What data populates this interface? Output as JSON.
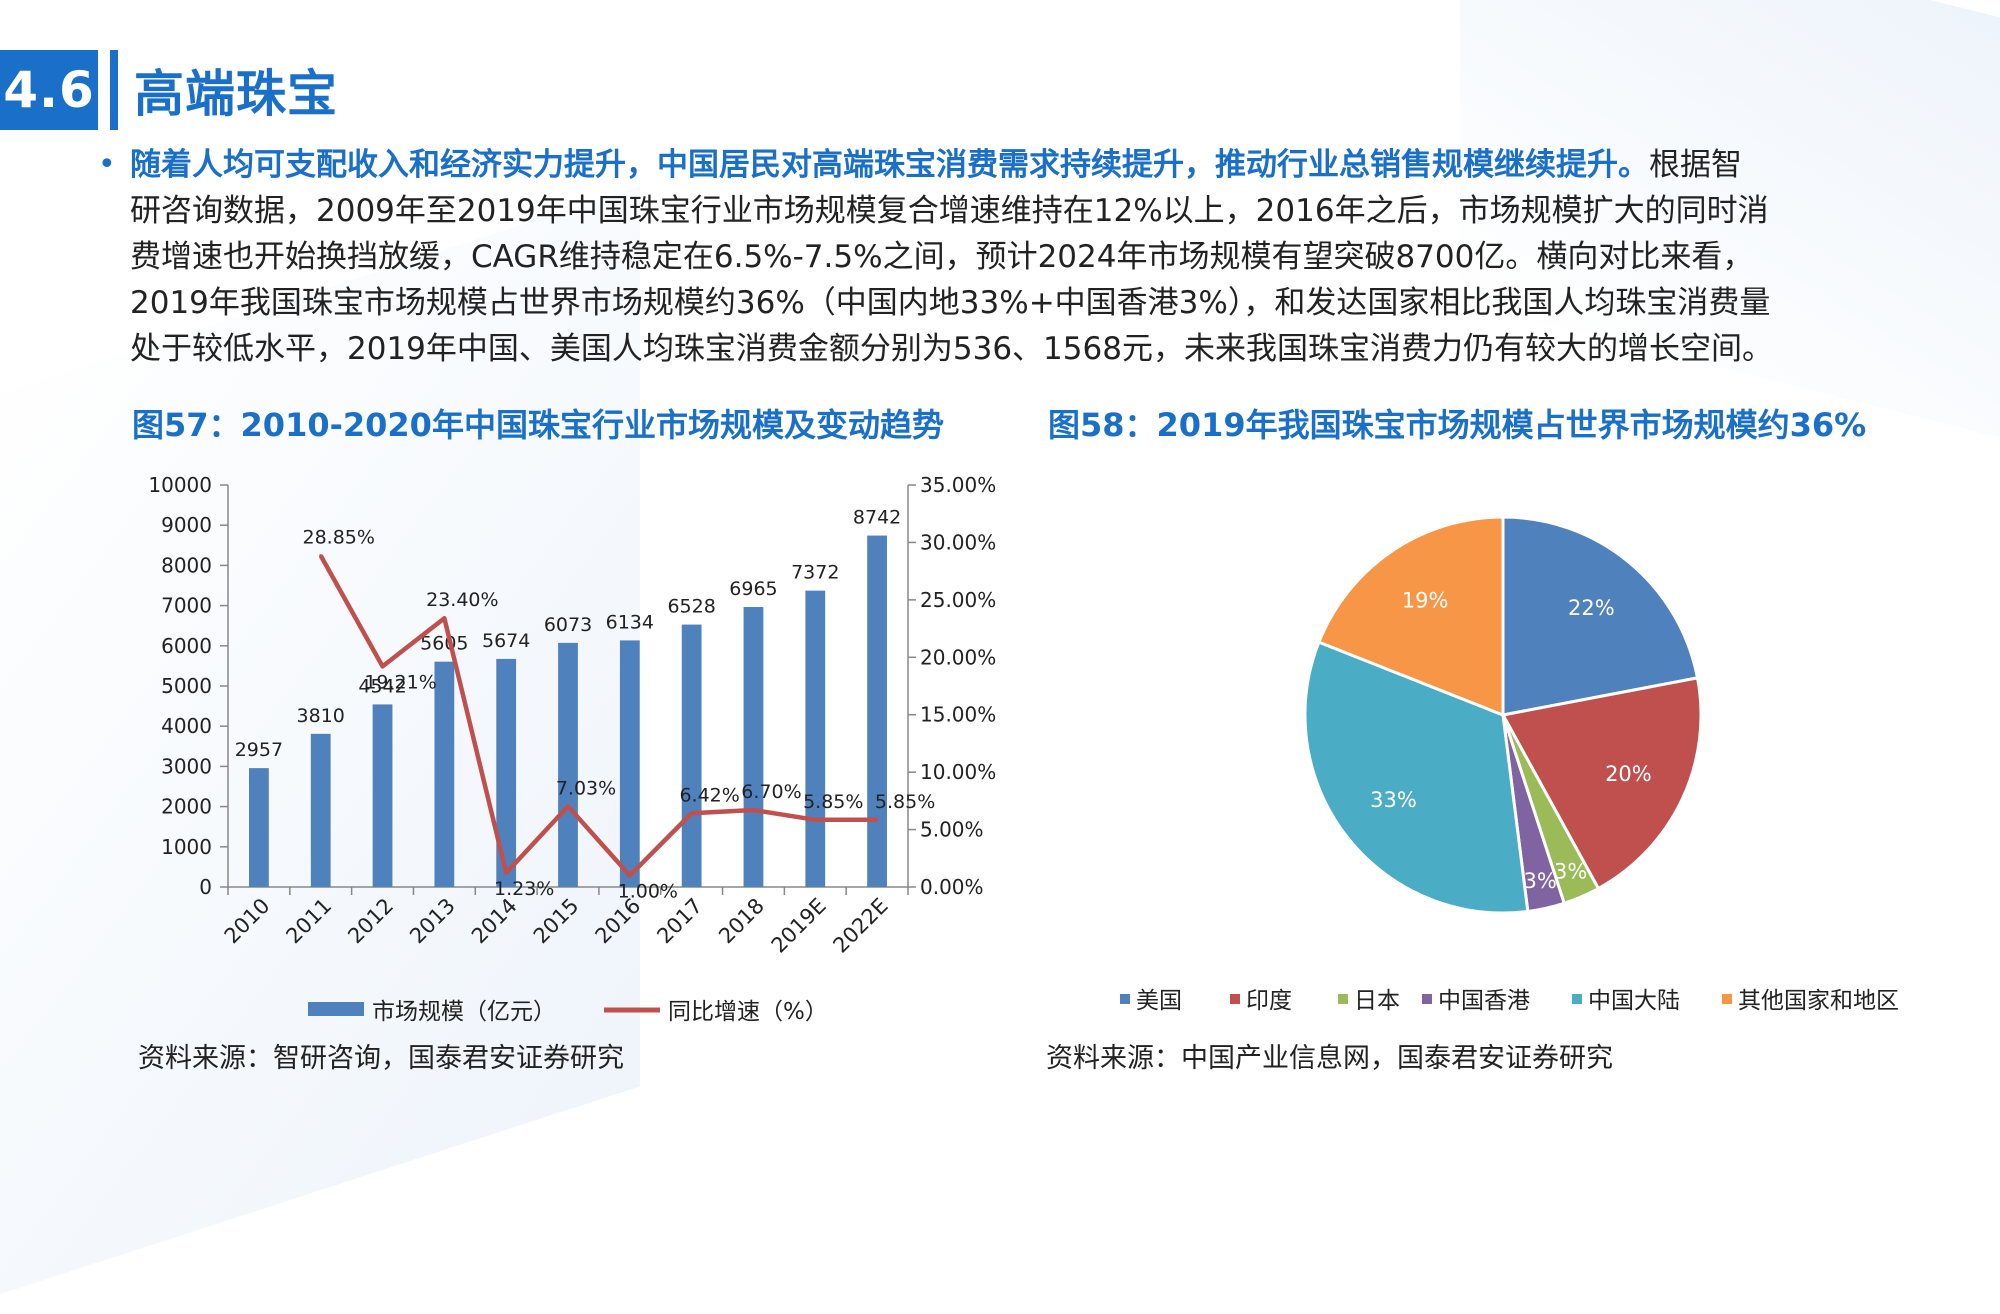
{
  "header": {
    "section_number": "4.6",
    "title": "高端珠宝"
  },
  "bullet": {
    "lead": "随着人均可支配收入和经济实力提升，中国居民对高端珠宝消费需求持续提升，推动行业总销售规模继续提升。",
    "lines": [
      "根据智",
      "研咨询数据，2009年至2019年中国珠宝行业市场规模复合增速维持在12%以上，2016年之后，市场规模扩大的同时消",
      "费增速也开始换挡放缓，CAGR维持稳定在6.5%-7.5%之间，预计2024年市场规模有望突破8700亿。横向对比来看，",
      "2019年我国珠宝市场规模占世界市场规模约36%（中国内地33%+中国香港3%），和发达国家相比我国人均珠宝消费量",
      "处于较低水平，2019年中国、美国人均珠宝消费金额分别为536、1568元，未来我国珠宝消费力仍有较大的增长空间。"
    ]
  },
  "figures": {
    "fig57_title": "图57：2010-2020年中国珠宝行业市场规模及变动趋势",
    "fig58_title": "图58：2019年我国珠宝市场规模占世界市场规模约36%",
    "fig57_source": "资料来源：智研咨询，国泰君安证券研究",
    "fig58_source": "资料来源：中国产业信息网，国泰君安证券研究"
  },
  "chart_data": [
    {
      "type": "bar",
      "categories": [
        "2010",
        "2011",
        "2012",
        "2013",
        "2014",
        "2015",
        "2016",
        "2017",
        "2018",
        "2019E",
        "2022E"
      ],
      "series": [
        {
          "name": "市场规模（亿元）",
          "type": "bar",
          "axis": "left",
          "values": [
            2957,
            3810,
            4542,
            5605,
            5674,
            6073,
            6134,
            6528,
            6965,
            7372,
            8742
          ],
          "labels": [
            "2957",
            "3810",
            "4542",
            "5605",
            "5674",
            "6073",
            "6134",
            "6528",
            "6965",
            "7372",
            "8742"
          ],
          "color": "#4f81bd"
        },
        {
          "name": "同比增速（%）",
          "type": "line",
          "axis": "right",
          "values": [
            null,
            28.85,
            19.21,
            23.4,
            1.23,
            7.03,
            1.0,
            6.42,
            6.7,
            5.85,
            5.85
          ],
          "labels": [
            "",
            "28.85%",
            "19.21%",
            "23.40%",
            "1.23%",
            "7.03%",
            "1.00%",
            "6.42%",
            "6.70%",
            "5.85%",
            "5.85%"
          ],
          "color": "#c0504d"
        }
      ],
      "ylim_left": [
        0,
        10000
      ],
      "yticks_left": [
        "0",
        "1000",
        "2000",
        "3000",
        "4000",
        "5000",
        "6000",
        "7000",
        "8000",
        "9000",
        "10000"
      ],
      "ylim_right": [
        0,
        35
      ],
      "yticks_right": [
        "0.00%",
        "5.00%",
        "10.00%",
        "15.00%",
        "20.00%",
        "25.00%",
        "30.00%",
        "35.00%"
      ],
      "grid": false,
      "legend_position": "bottom"
    },
    {
      "type": "pie",
      "categories": [
        "美国",
        "印度",
        "日本",
        "中国香港",
        "中国大陆",
        "其他国家和地区"
      ],
      "values": [
        22,
        20,
        3,
        3,
        33,
        19
      ],
      "labels": [
        "22%",
        "20%",
        "3%",
        "3%",
        "33%",
        "19%"
      ],
      "colors": [
        "#4f81bd",
        "#c0504d",
        "#9bbb59",
        "#8064a2",
        "#4bacc6",
        "#f79646"
      ],
      "legend_position": "bottom"
    }
  ]
}
